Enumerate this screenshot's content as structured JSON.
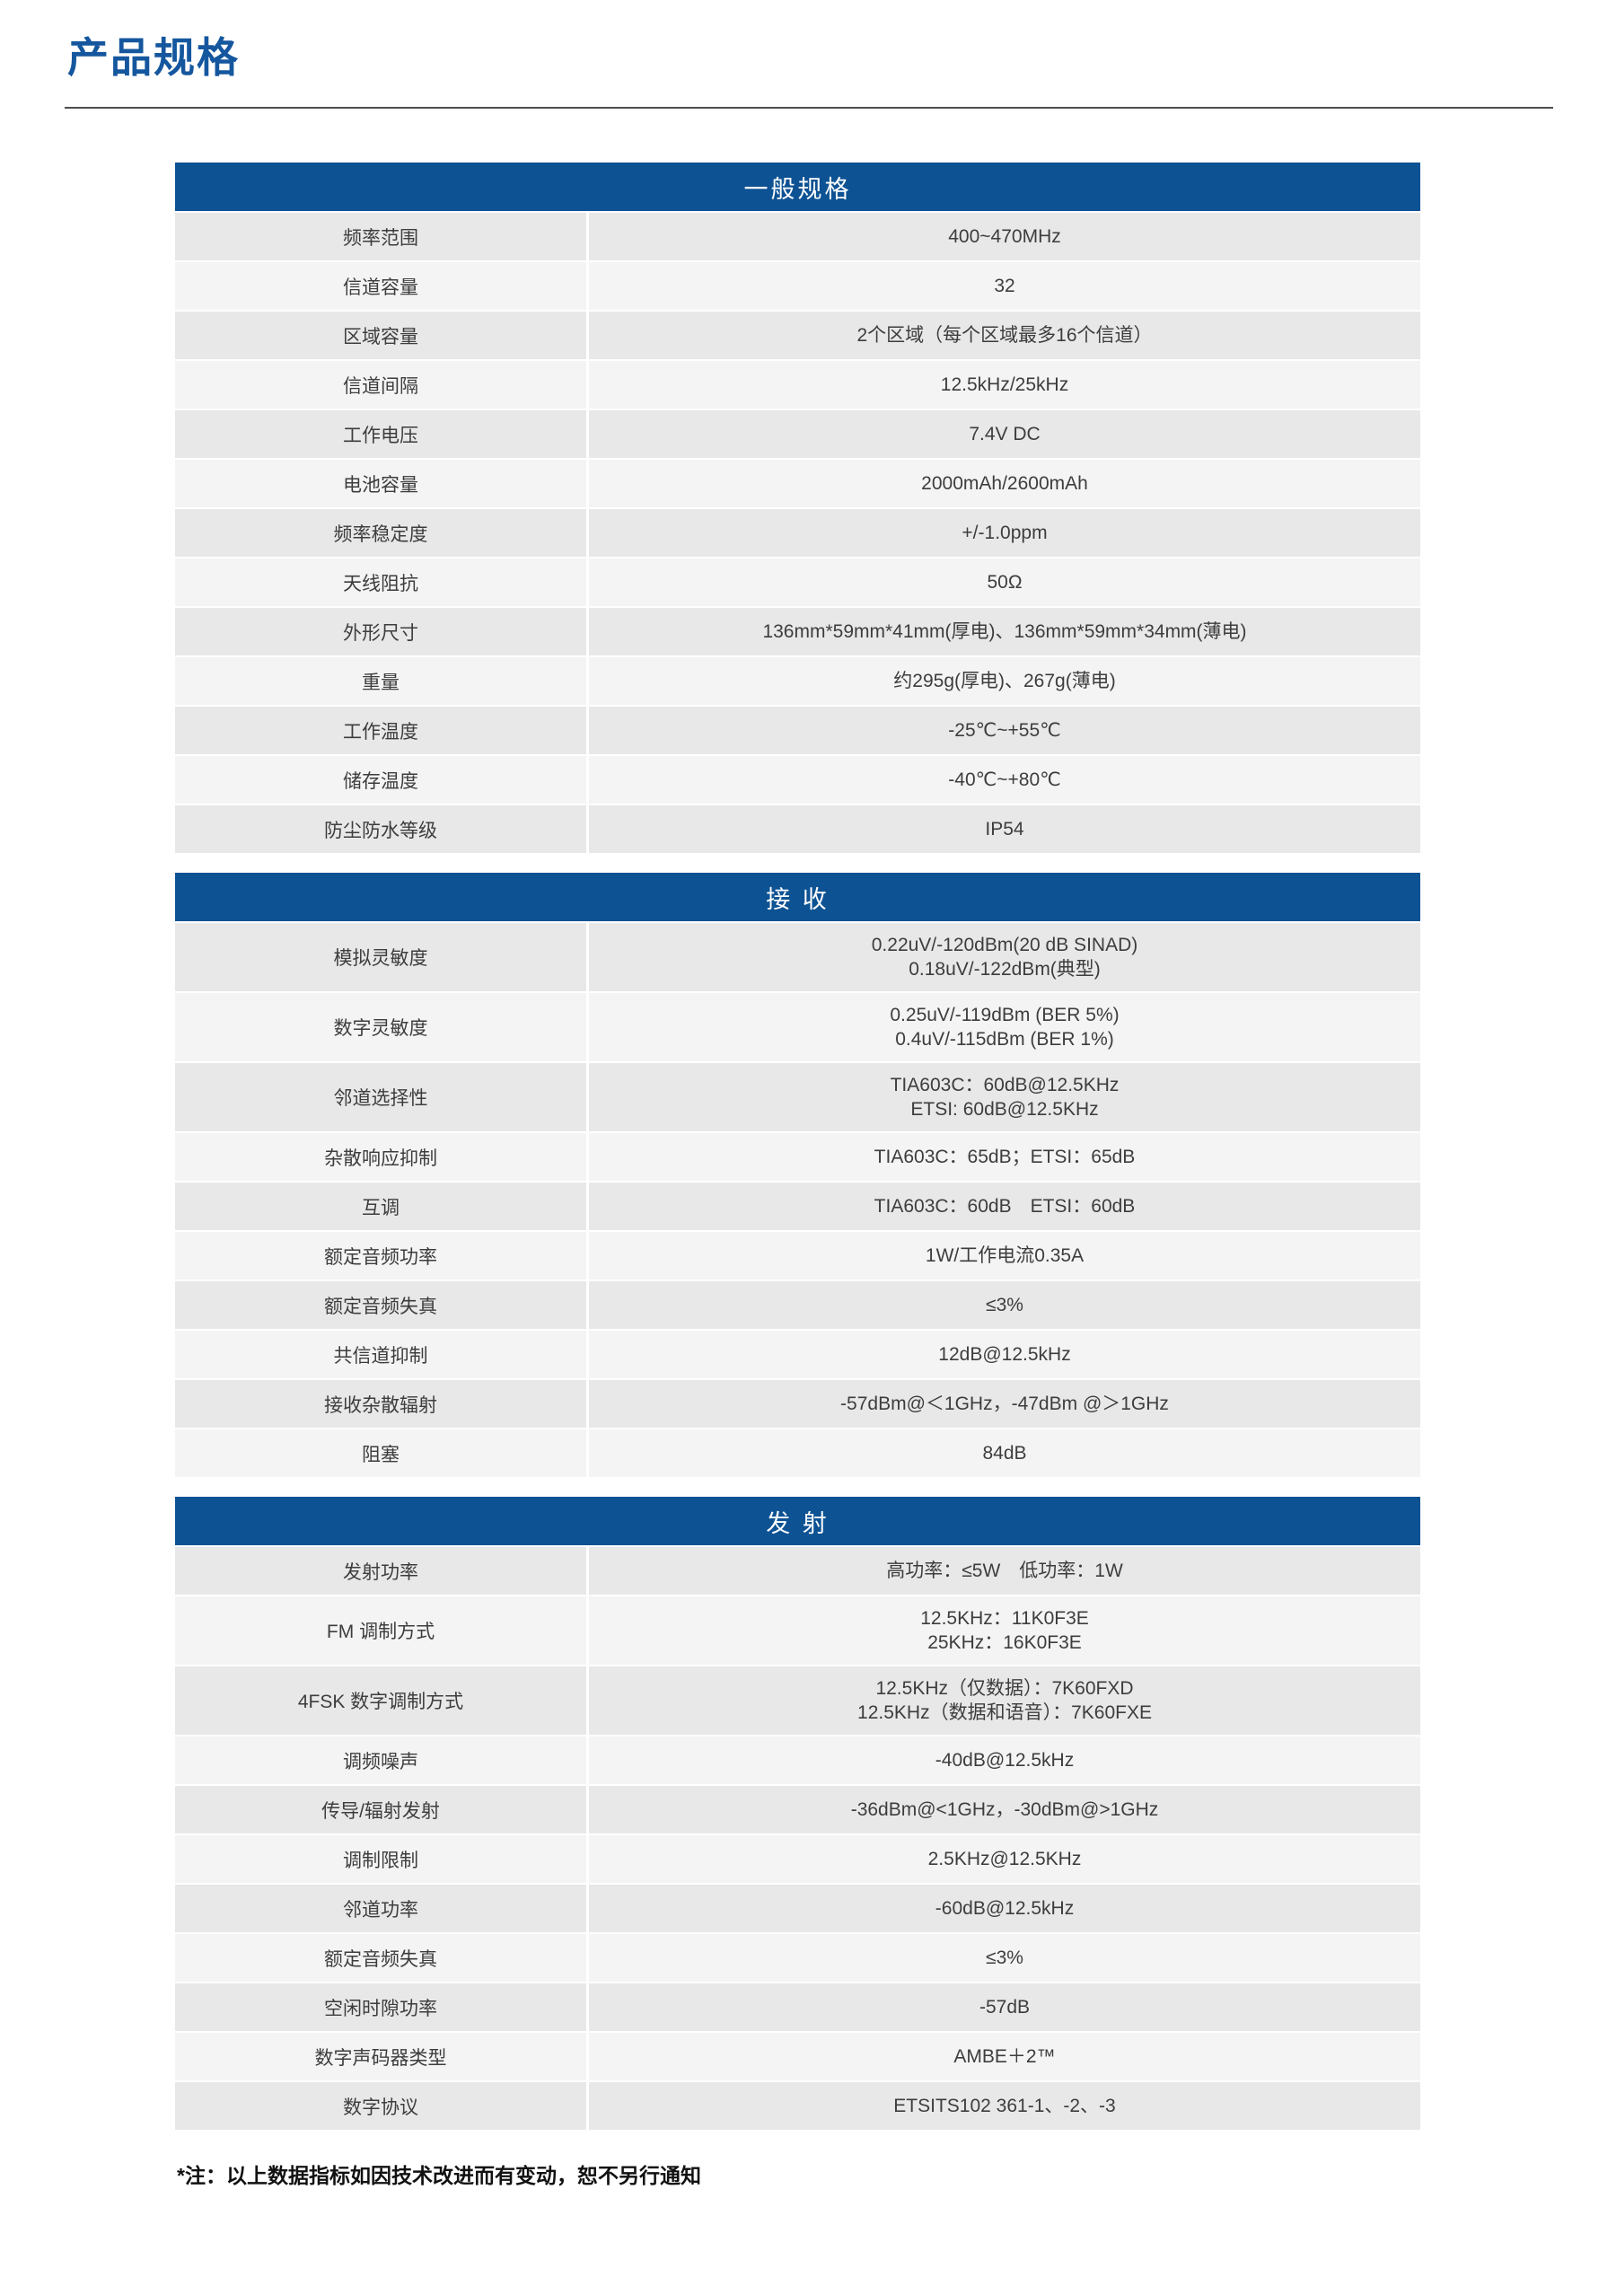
{
  "page": {
    "title": "产品规格",
    "note": "*注：以上数据指标如因技术改进而有变动，恕不另行通知"
  },
  "colors": {
    "title_blue": "#15579e",
    "header_blue": "#0d5293",
    "row_dark": "#e8e8e8",
    "row_light": "#f4f4f5"
  },
  "tables": [
    {
      "title": "一般规格",
      "rows": [
        {
          "label": "频率范围",
          "value": [
            "400~470MHz"
          ]
        },
        {
          "label": "信道容量",
          "value": [
            "32"
          ]
        },
        {
          "label": "区域容量",
          "value": [
            "2个区域（每个区域最多16个信道）"
          ]
        },
        {
          "label": "信道间隔",
          "value": [
            "12.5kHz/25kHz"
          ]
        },
        {
          "label": "工作电压",
          "value": [
            "7.4V DC"
          ]
        },
        {
          "label": "电池容量",
          "value": [
            "2000mAh/2600mAh"
          ]
        },
        {
          "label": "频率稳定度",
          "value": [
            "+/-1.0ppm"
          ]
        },
        {
          "label": "天线阻抗",
          "value": [
            "50Ω"
          ]
        },
        {
          "label": "外形尺寸",
          "value": [
            "136mm*59mm*41mm(厚电)、136mm*59mm*34mm(薄电)"
          ]
        },
        {
          "label": "重量",
          "value": [
            "约295g(厚电)、267g(薄电)"
          ]
        },
        {
          "label": "工作温度",
          "value": [
            "-25℃~+55℃"
          ]
        },
        {
          "label": "储存温度",
          "value": [
            "-40℃~+80℃"
          ]
        },
        {
          "label": "防尘防水等级",
          "value": [
            "IP54"
          ]
        }
      ]
    },
    {
      "title": "接 收",
      "rows": [
        {
          "label": "模拟灵敏度",
          "value": [
            "0.22uV/-120dBm(20 dB SINAD)",
            "0.18uV/-122dBm(典型)"
          ]
        },
        {
          "label": "数字灵敏度",
          "value": [
            "0.25uV/-119dBm (BER 5%)",
            "0.4uV/-115dBm  (BER 1%)"
          ]
        },
        {
          "label": "邻道选择性",
          "value": [
            "TIA603C：60dB@12.5KHz",
            "ETSI: 60dB@12.5KHz"
          ]
        },
        {
          "label": "杂散响应抑制",
          "value": [
            "TIA603C：65dB；ETSI：65dB"
          ]
        },
        {
          "label": "互调",
          "value": [
            "TIA603C：60dB　ETSI：60dB"
          ]
        },
        {
          "label": "额定音频功率",
          "value": [
            "1W/工作电流0.35A"
          ]
        },
        {
          "label": "额定音频失真",
          "value": [
            "≤3%"
          ]
        },
        {
          "label": "共信道抑制",
          "value": [
            "12dB@12.5kHz"
          ]
        },
        {
          "label": "接收杂散辐射",
          "value": [
            "-57dBm@＜1GHz，-47dBm @＞1GHz"
          ]
        },
        {
          "label": "阻塞",
          "value": [
            "84dB"
          ]
        }
      ]
    },
    {
      "title": "发 射",
      "rows": [
        {
          "label": "发射功率",
          "value": [
            "高功率：≤5W　低功率：1W"
          ]
        },
        {
          "label": "FM 调制方式",
          "value": [
            "12.5KHz：11K0F3E",
            "25KHz：16K0F3E"
          ]
        },
        {
          "label": "4FSK 数字调制方式",
          "value": [
            "12.5KHz（仅数据）：7K60FXD",
            "12.5KHz（数据和语音）：7K60FXE"
          ]
        },
        {
          "label": "调频噪声",
          "value": [
            "-40dB@12.5kHz"
          ]
        },
        {
          "label": "传导/辐射发射",
          "value": [
            "-36dBm@<1GHz，-30dBm@>1GHz"
          ]
        },
        {
          "label": "调制限制",
          "value": [
            "2.5KHz@12.5KHz"
          ]
        },
        {
          "label": "邻道功率",
          "value": [
            "-60dB@12.5kHz"
          ]
        },
        {
          "label": "额定音频失真",
          "value": [
            "≤3%"
          ]
        },
        {
          "label": "空闲时隙功率",
          "value": [
            "-57dB"
          ]
        },
        {
          "label": "数字声码器类型",
          "value": [
            "AMBE＋2™"
          ]
        },
        {
          "label": "数字协议",
          "value": [
            "ETSITS102 361-1、-2、-3"
          ]
        }
      ]
    }
  ]
}
